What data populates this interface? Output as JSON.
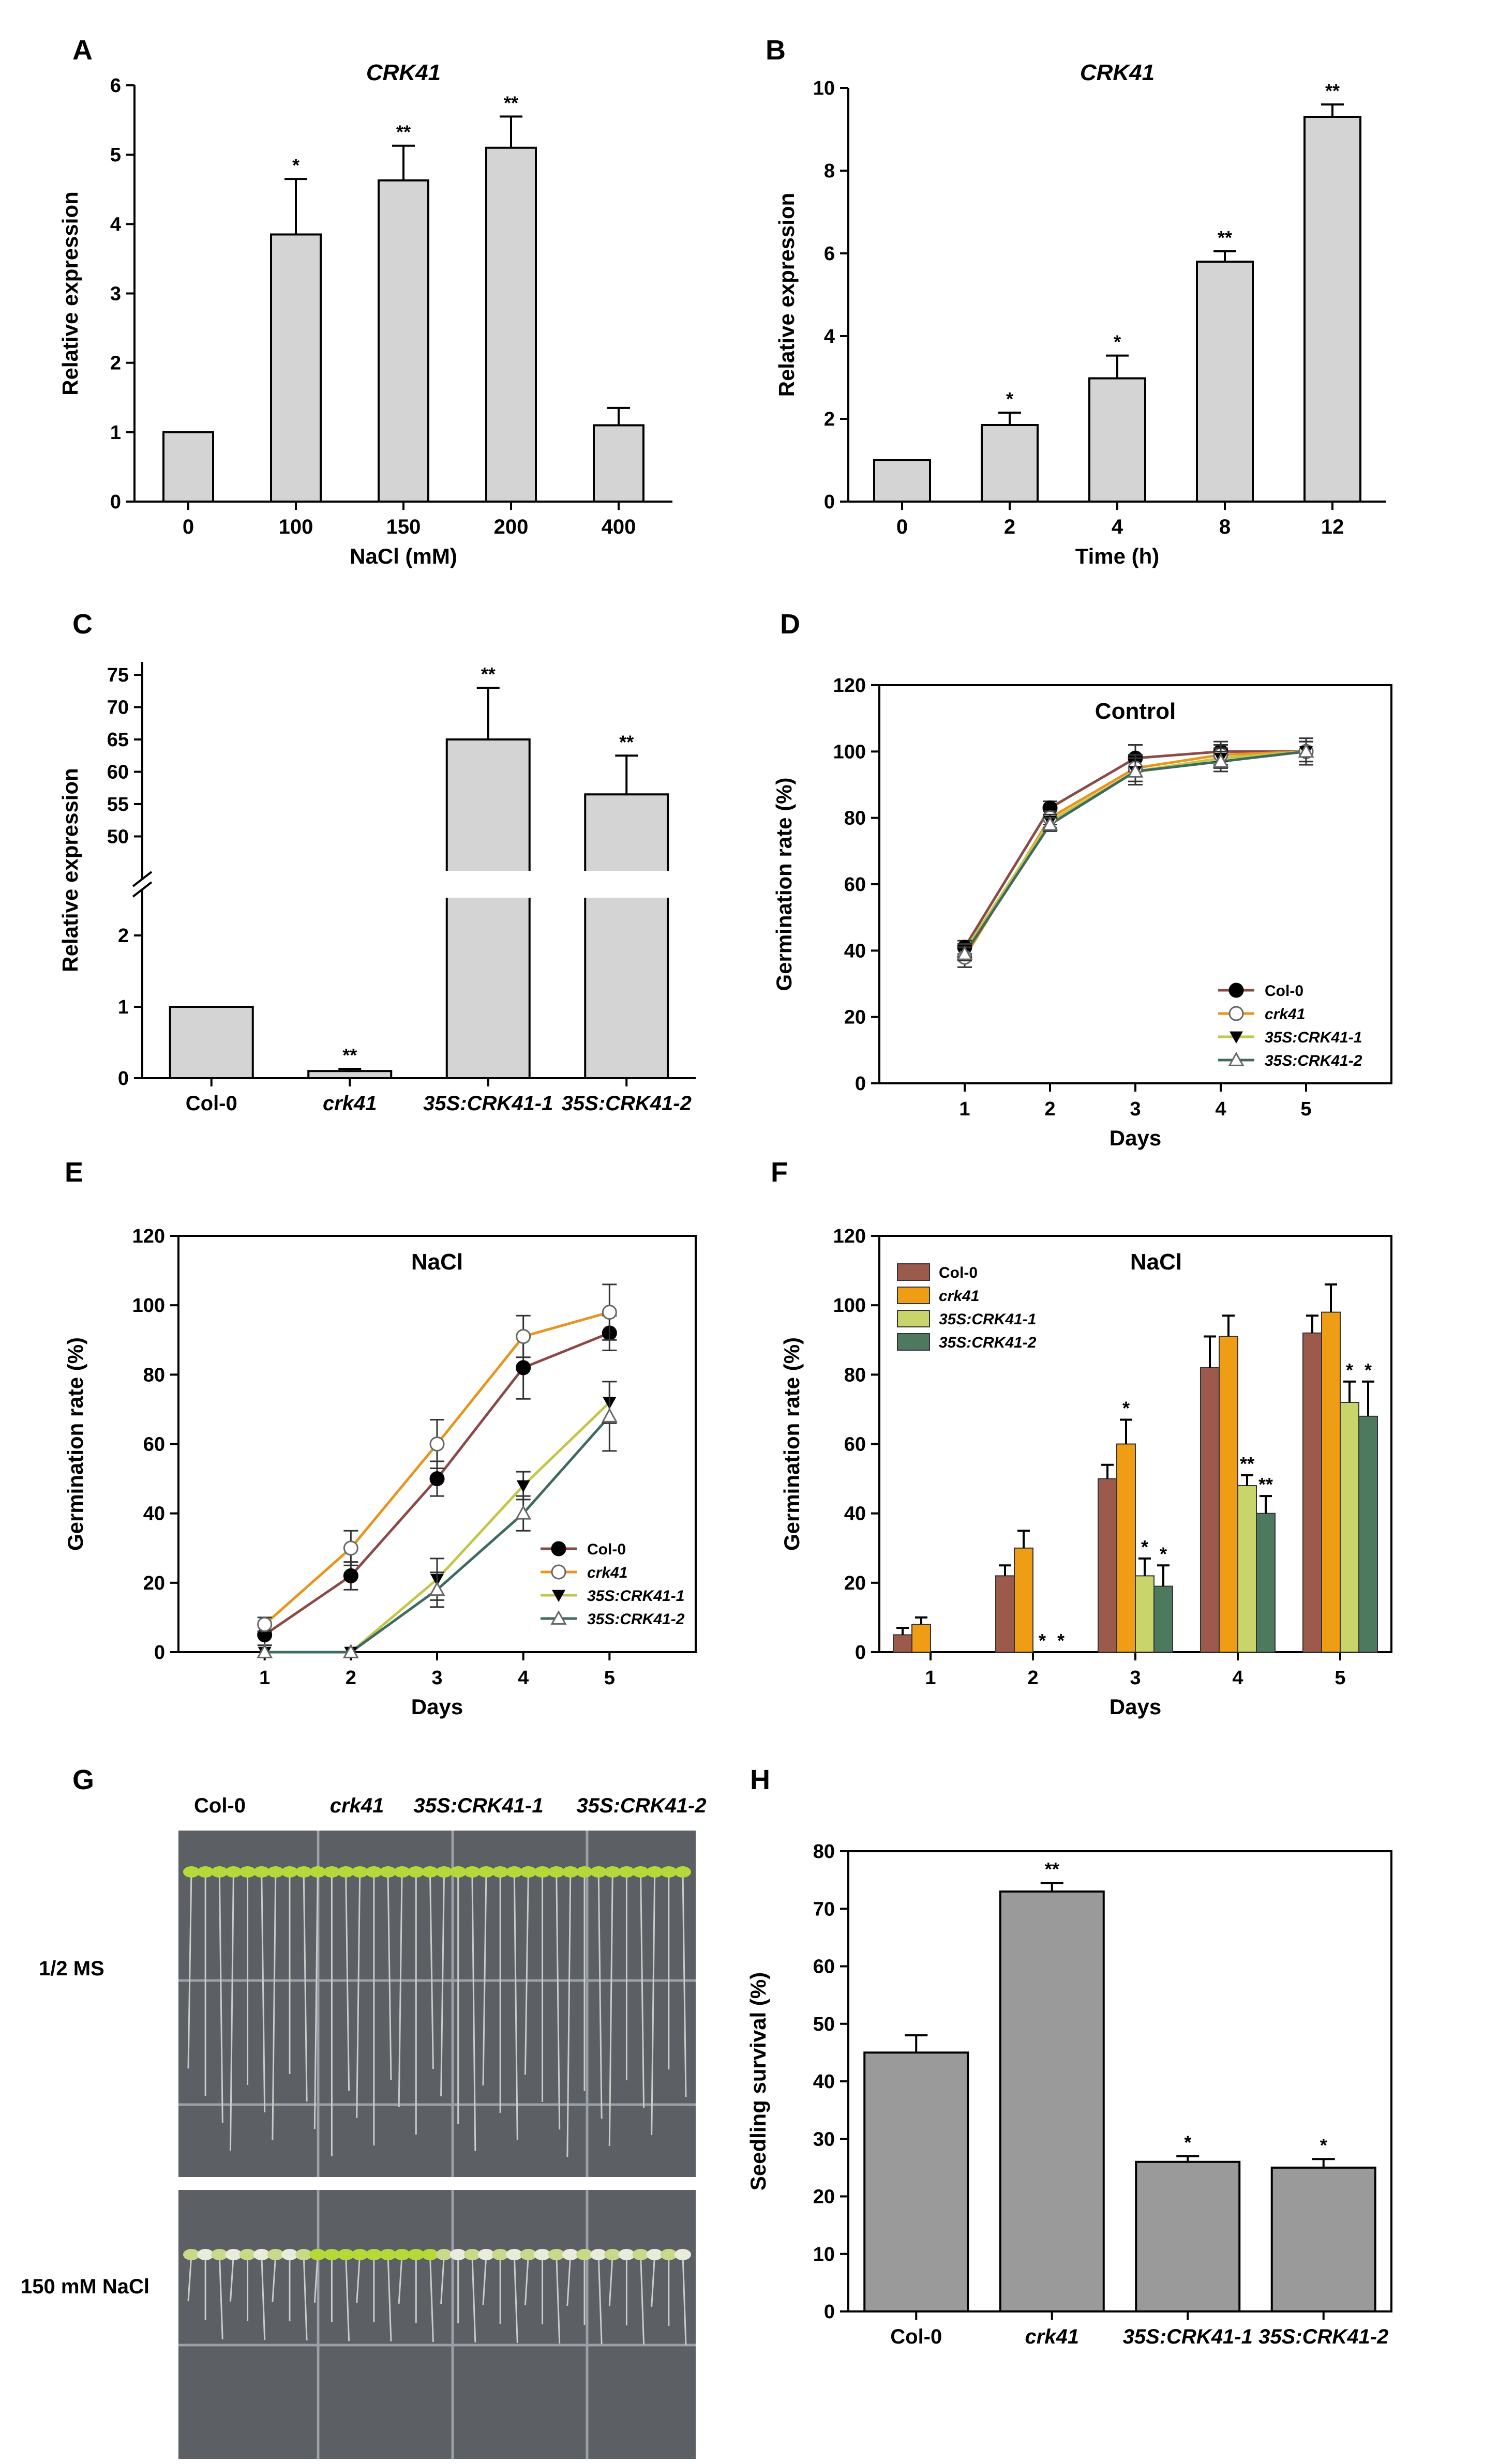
{
  "panel_labels": [
    "A",
    "B",
    "C",
    "D",
    "E",
    "F",
    "G",
    "H"
  ],
  "chart_data": [
    {
      "id": "A",
      "type": "bar",
      "title": "CRK41",
      "title_italic": true,
      "xlabel": "NaCl (mM)",
      "ylabel": "Relative expression",
      "ylim": [
        0,
        6
      ],
      "yticks": [
        0,
        1,
        2,
        3,
        4,
        5,
        6
      ],
      "categories": [
        "0",
        "100",
        "150",
        "200",
        "400"
      ],
      "values": [
        1.0,
        3.85,
        4.63,
        5.1,
        1.1
      ],
      "errors": [
        0,
        0.8,
        0.5,
        0.45,
        0.25
      ],
      "signif": [
        "",
        "*",
        "**",
        "**",
        ""
      ],
      "color": "#d4d4d4"
    },
    {
      "id": "B",
      "type": "bar",
      "title": "CRK41",
      "title_italic": true,
      "xlabel": "Time (h)",
      "ylabel": "Relative expression",
      "ylim": [
        0,
        10
      ],
      "yticks": [
        0,
        2,
        4,
        6,
        8,
        10
      ],
      "categories": [
        "0",
        "2",
        "4",
        "8",
        "12"
      ],
      "values": [
        1.0,
        1.85,
        2.98,
        5.8,
        9.3
      ],
      "errors": [
        0,
        0.3,
        0.55,
        0.25,
        0.3
      ],
      "signif": [
        "",
        "*",
        "*",
        "**",
        "**"
      ],
      "color": "#d4d4d4"
    },
    {
      "id": "C",
      "type": "bar",
      "title": "",
      "xlabel": "",
      "ylabel": "Relative expression",
      "broken_axis": true,
      "ylim_lower": [
        0,
        2.5
      ],
      "yticks_lower": [
        0,
        1,
        2
      ],
      "ylim_upper": [
        45,
        77
      ],
      "yticks_upper": [
        50,
        55,
        60,
        65,
        70,
        75
      ],
      "categories": [
        "Col-0",
        "crk41",
        "35S:CRK41-1",
        "35S:CRK41-2"
      ],
      "categories_italic": [
        false,
        true,
        true,
        true
      ],
      "values": [
        1.0,
        0.1,
        65,
        56.5
      ],
      "errors": [
        0,
        0.03,
        8,
        6
      ],
      "signif": [
        "",
        "**",
        "**",
        "**"
      ],
      "color": "#d4d4d4"
    },
    {
      "id": "D",
      "type": "line",
      "title": "Control",
      "xlabel": "Days",
      "ylabel": "Germination rate (%)",
      "xlim": [
        0,
        6
      ],
      "x": [
        1,
        2,
        3,
        4,
        5
      ],
      "ylim": [
        0,
        120
      ],
      "yticks": [
        0,
        20,
        40,
        60,
        80,
        100,
        120
      ],
      "series": [
        {
          "name": "Col-0",
          "italic": false,
          "values": [
            41,
            83,
            98,
            100,
            100
          ],
          "errors": [
            2,
            2,
            4,
            3,
            3
          ],
          "color": "#8b4a47",
          "marker": "circle-filled"
        },
        {
          "name": "crk41",
          "italic": true,
          "values": [
            38,
            80,
            95,
            99,
            100
          ],
          "errors": [
            3,
            2,
            4,
            3,
            3
          ],
          "color": "#e8941e",
          "marker": "circle-open"
        },
        {
          "name": "35S:CRK41-1",
          "italic": true,
          "values": [
            40,
            79,
            94,
            98,
            100
          ],
          "errors": [
            2,
            2,
            4,
            3,
            3
          ],
          "color": "#c2c64a",
          "marker": "triangle-down-filled"
        },
        {
          "name": "35S:CRK41-2",
          "italic": true,
          "values": [
            39,
            78,
            94,
            97,
            100
          ],
          "errors": [
            2,
            2,
            4,
            3,
            4
          ],
          "color": "#3d6b60",
          "marker": "triangle-up-open"
        }
      ]
    },
    {
      "id": "E",
      "type": "line",
      "title": "NaCl",
      "xlabel": "Days",
      "ylabel": "Germination rate (%)",
      "xlim": [
        0,
        6
      ],
      "x": [
        1,
        2,
        3,
        4,
        5
      ],
      "ylim": [
        0,
        120
      ],
      "yticks": [
        0,
        20,
        40,
        60,
        80,
        100,
        120
      ],
      "series": [
        {
          "name": "Col-0",
          "italic": false,
          "values": [
            5,
            22,
            50,
            82,
            92
          ],
          "errors": [
            3,
            4,
            5,
            9,
            5
          ],
          "color": "#8b4a47",
          "marker": "circle-filled"
        },
        {
          "name": "crk41",
          "italic": true,
          "values": [
            8,
            30,
            60,
            91,
            98
          ],
          "errors": [
            2,
            5,
            7,
            6,
            8
          ],
          "color": "#e8941e",
          "marker": "circle-open"
        },
        {
          "name": "35S:CRK41-1",
          "italic": true,
          "values": [
            0,
            0,
            21,
            48,
            72
          ],
          "errors": [
            0,
            0,
            6,
            4,
            6
          ],
          "color": "#c2c64a",
          "marker": "triangle-down-filled"
        },
        {
          "name": "35S:CRK41-2",
          "italic": true,
          "values": [
            0,
            0,
            18,
            40,
            68
          ],
          "errors": [
            0,
            0,
            5,
            5,
            10
          ],
          "color": "#3d6b60",
          "marker": "triangle-up-open"
        }
      ]
    },
    {
      "id": "F",
      "type": "bar",
      "title": "NaCl",
      "xlabel": "Days",
      "ylabel": "Germination rate (%)",
      "categories": [
        "1",
        "2",
        "3",
        "4",
        "5"
      ],
      "ylim": [
        0,
        120
      ],
      "yticks": [
        0,
        20,
        40,
        60,
        80,
        100,
        120
      ],
      "series": [
        {
          "name": "Col-0",
          "italic": false,
          "values": [
            5,
            22,
            50,
            82,
            92
          ],
          "errors": [
            2,
            3,
            4,
            9,
            5
          ],
          "color": "#9c5a4d",
          "signif": [
            "",
            "",
            "",
            "",
            ""
          ]
        },
        {
          "name": "crk41",
          "italic": true,
          "values": [
            8,
            30,
            60,
            91,
            98
          ],
          "errors": [
            2,
            5,
            7,
            6,
            8
          ],
          "color": "#ef9d14",
          "signif": [
            "",
            "",
            "*",
            "",
            ""
          ]
        },
        {
          "name": "35S:CRK41-1",
          "italic": true,
          "values": [
            0,
            0,
            22,
            48,
            72
          ],
          "errors": [
            0,
            0,
            5,
            3,
            6
          ],
          "color": "#c9d46a",
          "signif": [
            "",
            "*",
            "*",
            "**",
            "*"
          ]
        },
        {
          "name": "35S:CRK41-2",
          "italic": true,
          "values": [
            0,
            0,
            19,
            40,
            68
          ],
          "errors": [
            0,
            0,
            6,
            5,
            10
          ],
          "color": "#4d7a5f",
          "signif": [
            "",
            "*",
            "*",
            "**",
            "*"
          ]
        }
      ]
    },
    {
      "id": "H",
      "type": "bar",
      "title": "",
      "xlabel": "",
      "ylabel": "Seedling survival (%)",
      "ylim": [
        0,
        80
      ],
      "yticks": [
        0,
        10,
        20,
        30,
        40,
        50,
        60,
        70,
        80
      ],
      "categories": [
        "Col-0",
        "crk41",
        "35S:CRK41-1",
        "35S:CRK41-2"
      ],
      "categories_italic": [
        false,
        true,
        true,
        true
      ],
      "values": [
        45,
        73,
        26,
        25
      ],
      "errors": [
        3,
        1.5,
        1,
        1.5
      ],
      "signif": [
        "",
        "**",
        "*",
        "*"
      ],
      "color": "#9a9a9a"
    }
  ],
  "panel_G": {
    "genotypes": [
      "Col-0",
      "crk41",
      "35S:CRK41-1",
      "35S:CRK41-2"
    ],
    "genotypes_italic": [
      false,
      true,
      true,
      true
    ],
    "rows": [
      "1/2 MS",
      "150 mM NaCl"
    ],
    "plate_color": "#5c5f64",
    "seedling_color": "#b6d93a",
    "bleached_color": "#e9ecdc"
  }
}
